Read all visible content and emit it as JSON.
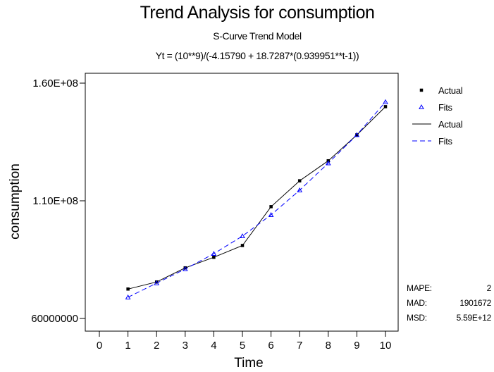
{
  "chart_data": {
    "type": "line",
    "title": "Trend Analysis for consumption",
    "subtitle": "S-Curve Trend Model",
    "equation": "Yt = (10**9)/(-4.15790 + 18.7287*(0.939951**t-1))",
    "xlabel": "Time",
    "ylabel": "consumption",
    "xlim": [
      0,
      10
    ],
    "ylim": [
      60000000,
      160000000
    ],
    "x_ticks": [
      0,
      1,
      2,
      3,
      4,
      5,
      6,
      7,
      8,
      9,
      10
    ],
    "x_tick_labels": [
      "0",
      "1",
      "2",
      "3",
      "4",
      "5",
      "6",
      "7",
      "8",
      "9",
      "10"
    ],
    "y_ticks": [
      60000000,
      110000000,
      160000000
    ],
    "y_tick_labels": [
      "60000000",
      "1.10E+08",
      "1.60E+08"
    ],
    "x": [
      1,
      2,
      3,
      4,
      5,
      6,
      7,
      8,
      9,
      10
    ],
    "series": [
      {
        "name": "Actual",
        "values": [
          72500000,
          75500000,
          81500000,
          86000000,
          91000000,
          107500000,
          118500000,
          127000000,
          138000000,
          150000000
        ],
        "color": "#000000",
        "line": "solid",
        "marker": "square"
      },
      {
        "name": "Fits",
        "values": [
          69000000,
          75000000,
          81000000,
          87500000,
          95000000,
          104000000,
          114500000,
          126000000,
          138000000,
          152000000
        ],
        "color": "#0000ff",
        "line": "dashed",
        "marker": "triangle"
      }
    ],
    "legend": {
      "placement": "top-right",
      "entries": [
        {
          "label": "Actual",
          "kind": "marker",
          "series": "Actual"
        },
        {
          "label": "Fits",
          "kind": "marker",
          "series": "Fits"
        },
        {
          "label": "Actual",
          "kind": "line",
          "series": "Actual"
        },
        {
          "label": "Fits",
          "kind": "line",
          "series": "Fits"
        }
      ]
    },
    "accuracy": [
      {
        "label": "MAPE:",
        "value": "2"
      },
      {
        "label": "MAD:",
        "value": "1901672"
      },
      {
        "label": "MSD:",
        "value": "5.59E+12"
      }
    ],
    "grid": false
  }
}
